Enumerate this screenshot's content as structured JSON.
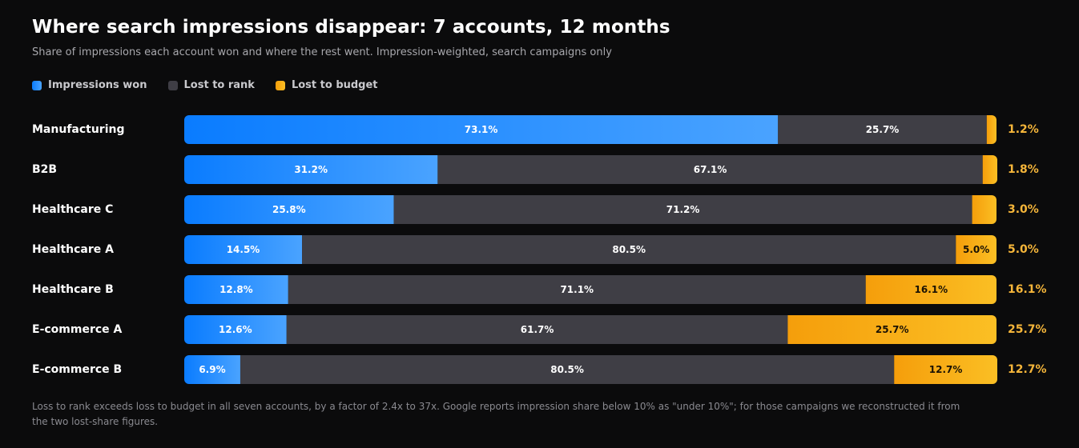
{
  "title": "Where search impressions disappear: 7 accounts, 12 months",
  "subtitle": "Share of impressions each account won and where the rest went. Impression-weighted, search campaigns only",
  "footnote": "Loss to rank exceeds loss to budget in all seven accounts, by a factor of 2.4x to 37x. Google reports impression share below 10% as \"under 10%\"; for those campaigns we reconstructed it from the two lost-share figures.",
  "legend": [
    {
      "label": "Impressions won",
      "color": "#2f8cff"
    },
    {
      "label": "Lost to rank",
      "color": "#3f3e45"
    },
    {
      "label": "Lost to budget",
      "color": "#fbbf24"
    }
  ],
  "colors": {
    "won_start": "#0a7cff",
    "won_end": "#4aa3ff",
    "rank": "#3f3e45",
    "budget_start": "#f59e0b",
    "budget_end": "#fbbf24",
    "budget_label": "#f6b63a",
    "category_label": "#ffffff"
  },
  "chart_data": {
    "type": "bar",
    "orientation": "horizontal",
    "stacked": true,
    "unit": "%",
    "xlim": [
      0,
      100
    ],
    "categories": [
      "Manufacturing",
      "B2B",
      "Healthcare C",
      "Healthcare A",
      "Healthcare B",
      "E-commerce A",
      "E-commerce B"
    ],
    "series": [
      {
        "name": "Impressions won",
        "values": [
          73.1,
          31.2,
          25.8,
          14.5,
          12.8,
          12.6,
          6.9
        ]
      },
      {
        "name": "Lost to rank",
        "values": [
          25.7,
          67.1,
          71.2,
          80.5,
          71.1,
          61.7,
          80.5
        ]
      },
      {
        "name": "Lost to budget",
        "values": [
          1.2,
          1.8,
          3.0,
          5.0,
          16.1,
          25.7,
          12.7
        ]
      }
    ],
    "grid": false,
    "legend_position": "top-left"
  }
}
